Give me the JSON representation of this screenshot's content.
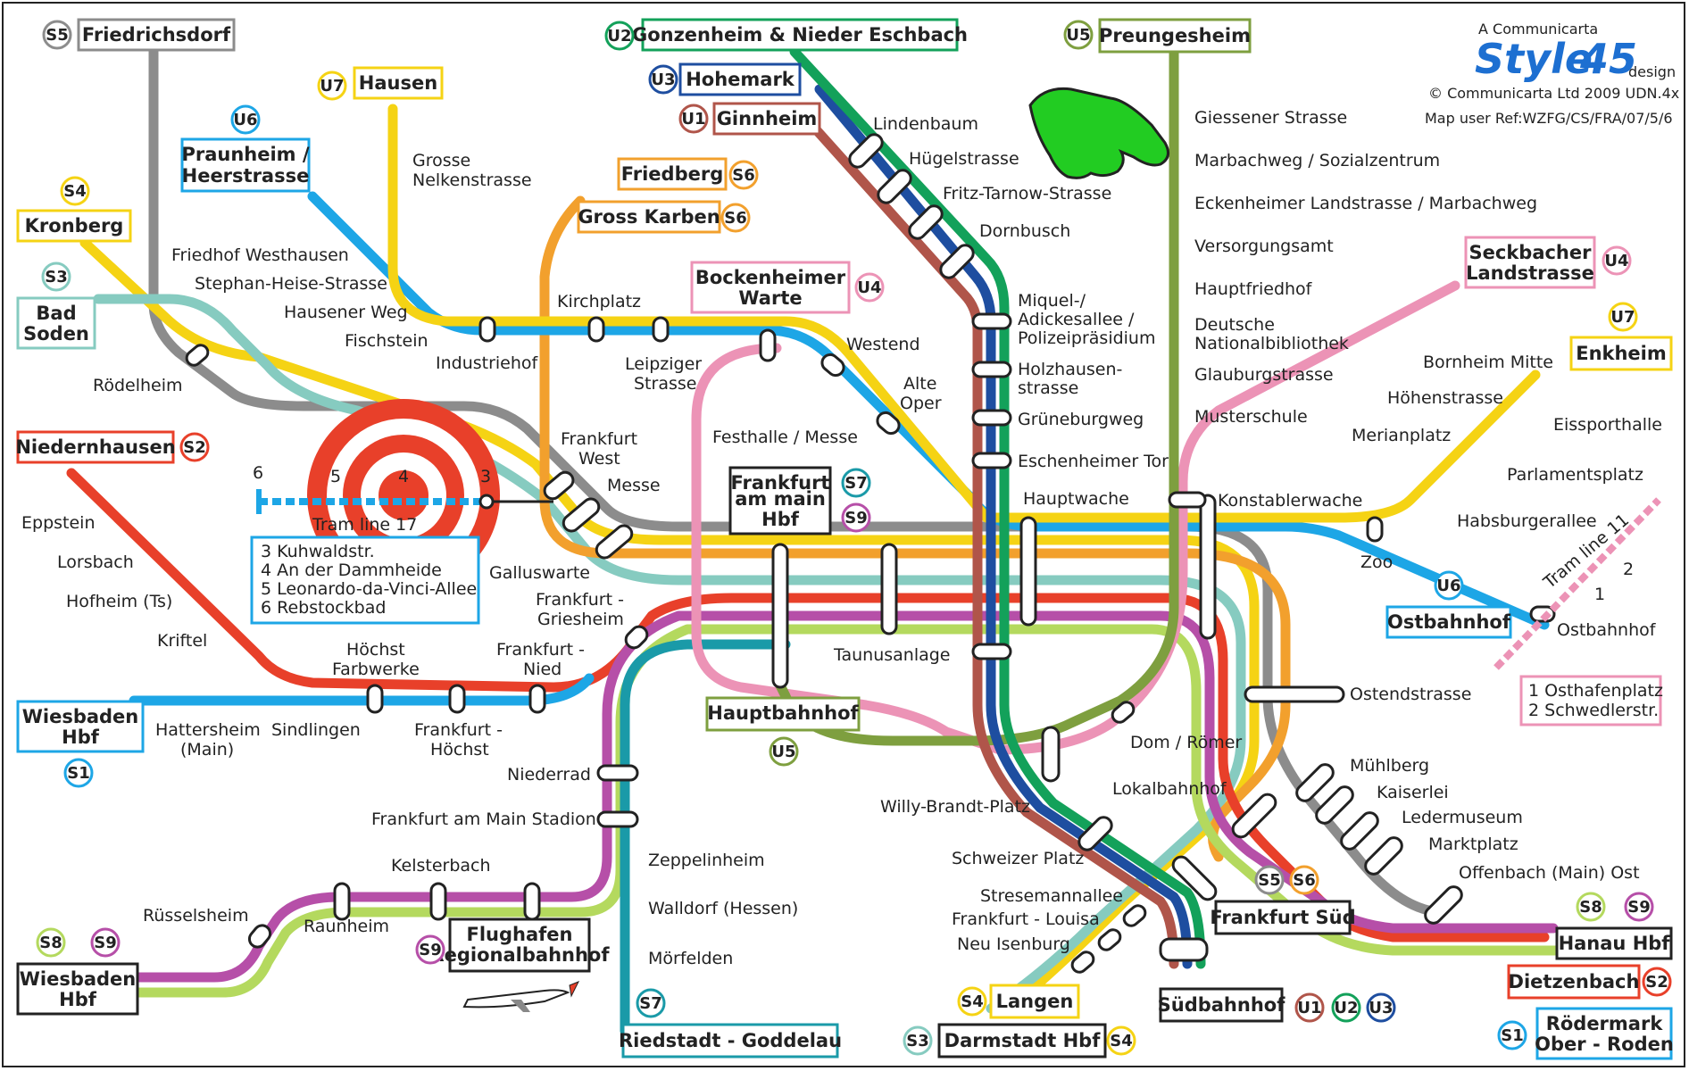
{
  "credits": {
    "brand": "A Communicarta",
    "logo_word": "Style",
    "logo_num": "45",
    "logo_suffix": "design",
    "copyright": "© Communicarta Ltd 2009 UDN.4x",
    "ref": "Map user Ref:WZFG/CS/FRA/07/5/6"
  },
  "colors": {
    "S1": "#e8402a",
    "S2": "#e8402a",
    "S3": "#86cbc0",
    "S4": "#f5d314",
    "S5": "#8c8c8c",
    "S6": "#f2a02d",
    "S7": "#1a9aa8",
    "S8": "#b4d95e",
    "S9": "#b64fa8",
    "U1": "#b0554a",
    "U2": "#13a15a",
    "U3": "#1e4ea0",
    "U4": "#ec93b6",
    "U5": "#7e9f3f",
    "U6": "#1da6e6",
    "U7": "#f5d314"
  },
  "terminals": {
    "friedrichsdorf": "Friedrichsdorf",
    "gonzenheim": "Gonzenheim & Nieder Eschbach",
    "hohemark": "Hohemark",
    "ginnheim": "Ginnheim",
    "preungesheim": "Preungesheim",
    "hausen": "Hausen",
    "praunheim": "Praunheim /",
    "praunheim2": "Heerstrasse",
    "kronberg": "Kronberg",
    "friedberg": "Friedberg",
    "gross_karben": "Gross Karben",
    "bad_soden": "Bad",
    "bad_soden2": "Soden",
    "bockenheimer": "Bockenheimer",
    "bockenheimer2": "Warte",
    "seckbacher": "Seckbacher",
    "seckbacher2": "Landstrasse",
    "enkheim": "Enkheim",
    "niedernhausen": "Niedernhausen",
    "fra_hbf": "Frankfurt",
    "fra_hbf2": "am main",
    "fra_hbf3": "Hbf",
    "wiesbaden": "Wiesbaden",
    "wiesbaden2": "Hbf",
    "hauptbahnhof": "Hauptbahnhof",
    "ostbahnhof": "Ostbahnhof",
    "flughafen": "Flughafen",
    "flughafen2": "Regionalbahnhof",
    "wiesbaden_b": "Wiesbaden",
    "wiesbaden_b2": "Hbf",
    "riedstadt": "Riedstadt - Goddelau",
    "frankfurt_sued": "Frankfurt Süd",
    "suedbahnhof": "Südbahnhof",
    "langen": "Langen",
    "darmstadt": "Darmstadt Hbf",
    "hanau": "Hanau Hbf",
    "dietzenbach": "Dietzenbach",
    "roedermark": "Rödermark",
    "roedermark2": "Ober - Roden"
  },
  "lines": {
    "s5_a": "S5",
    "u2_a": "U2",
    "u3_a": "U3",
    "u1_a": "U1",
    "u5_a": "U5",
    "u7_a": "U7",
    "u6_a": "U6",
    "s4_a": "S4",
    "s6_a": "S6",
    "s6_b": "S6",
    "s3_a": "S3",
    "u4_a": "U4",
    "u4_b": "U4",
    "u7_b": "U7",
    "s2_a": "S2",
    "s7_a": "S7",
    "s9_a": "S9",
    "s1_a": "S1",
    "u5_b": "U5",
    "u6_b": "U6",
    "s8_a": "S8",
    "s9_b": "S9",
    "s9_c": "S9",
    "s7_b": "S7",
    "s5_b": "S5",
    "s6_c": "S6",
    "u1_b": "U1",
    "u2_b": "U2",
    "u3_b": "U3",
    "s4_b": "S4",
    "s3_b": "S3",
    "s4_c": "S4",
    "s8_b": "S8",
    "s9_d": "S9",
    "s2_b": "S2",
    "s1_b": "S1"
  },
  "stations": {
    "lindenbaum": "Lindenbaum",
    "huegelstrasse": "Hügelstrasse",
    "fritz_tarnow": "Fritz-Tarnow-Strasse",
    "dornbusch": "Dornbusch",
    "miquel1": "Miquel-/",
    "miquel2": "Adickesallee /",
    "miquel3": "Polizeipräsidium",
    "holzhausen1": "Holzhausen-",
    "holzhausen2": "strasse",
    "grueneburgweg": "Grüneburgweg",
    "eschenheimer": "Eschenheimer Tor",
    "hauptwache": "Hauptwache",
    "konstablerwache": "Konstablerwache",
    "giessener": "Giessener Strasse",
    "marbachweg": "Marbachweg / Sozialzentrum",
    "eckenheimer": "Eckenheimer Landstrasse / Marbachweg",
    "versorgungsamt": "Versorgungsamt",
    "hauptfriedhof": "Hauptfriedhof",
    "dnb1": "Deutsche",
    "dnb2": "Nationalbibliothek",
    "glauburg": "Glauburgstrasse",
    "musterschule": "Musterschule",
    "grosse1": "Grosse",
    "grosse2": "Nelkenstrasse",
    "friedhof_westhausen": "Friedhof  Westhausen",
    "stephan_heise": "Stephan-Heise-Strasse",
    "hausener_weg": "Hausener Weg",
    "fischstein": "Fischstein",
    "industriehof": "Industriehof",
    "kirchplatz": "Kirchplatz",
    "leipziger1": "Leipziger",
    "leipziger2": "Strasse",
    "westend": "Westend",
    "alte_oper1": "Alte",
    "alte_oper2": "Oper",
    "festhalle": "Festhalle / Messe",
    "frankfurt_west1": "Frankfurt",
    "frankfurt_west2": "West",
    "messe": "Messe",
    "galluswarte": "Galluswarte",
    "roedelheim": "Rödelheim",
    "eppstein": "Eppstein",
    "lorsbach": "Lorsbach",
    "hofheim": "Hofheim (Ts)",
    "kriftel": "Kriftel",
    "hattersheim1": "Hattersheim",
    "hattersheim2": "(Main)",
    "sindlingen": "Sindlingen",
    "hoechst_fw1": "Höchst",
    "hoechst_fw2": "Farbwerke",
    "ff_hoechst1": "Frankfurt -",
    "ff_hoechst2": "Höchst",
    "ff_nied1": "Frankfurt -",
    "ff_nied2": "Nied",
    "ff_griesheim1": "Frankfurt -",
    "ff_griesheim2": "Griesheim",
    "taunusanlage": "Taunusanlage",
    "niederrad": "Niederrad",
    "stadion": "Frankfurt am Main Stadion",
    "kelsterbach": "Kelsterbach",
    "raunheim": "Raunheim",
    "ruesselsheim": "Rüsselsheim",
    "zeppelinheim": "Zeppelinheim",
    "walldorf": "Walldorf (Hessen)",
    "moerfelden": "Mörfelden",
    "willy_brandt": "Willy-Brandt-Platz",
    "dom_roemer": "Dom / Römer",
    "lokalbahnhof": "Lokalbahnhof",
    "schweizer_platz": "Schweizer Platz",
    "stresemann": "Stresemannallee",
    "louisa": "Frankfurt - Louisa",
    "neu_isenburg": "Neu Isenburg",
    "zoo": "Zoo",
    "ostendstrasse": "Ostendstrasse",
    "muehlberg": "Mühlberg",
    "kaiserlei": "Kaiserlei",
    "ledermuseum": "Ledermuseum",
    "marktplatz": "Marktplatz",
    "offenbach_ost": "Offenbach (Main) Ost",
    "bornheim": "Bornheim Mitte",
    "hoehenstrasse": "Höhenstrasse",
    "merianplatz": "Merianplatz",
    "eissporthalle": "Eissporthalle",
    "parlamentsplatz": "Parlamentsplatz",
    "habsburgerallee": "Habsburgerallee",
    "ostbahnhof_stop": "Ostbahnhof"
  },
  "trams": {
    "tram17": "Tram line 17",
    "tram17_box": [
      "3  Kuhwaldstr.",
      "4  An der Dammheide",
      "5  Leonardo-da-Vinci-Allee",
      "6  Rebstockbad"
    ],
    "target_nums": [
      "6",
      "5",
      "4",
      "3"
    ],
    "tram11": "Tram line 11",
    "tram11_nums": [
      "2",
      "1"
    ],
    "tram11_box": [
      "1  Osthafenplatz",
      "2  Schwedlerstr."
    ]
  }
}
